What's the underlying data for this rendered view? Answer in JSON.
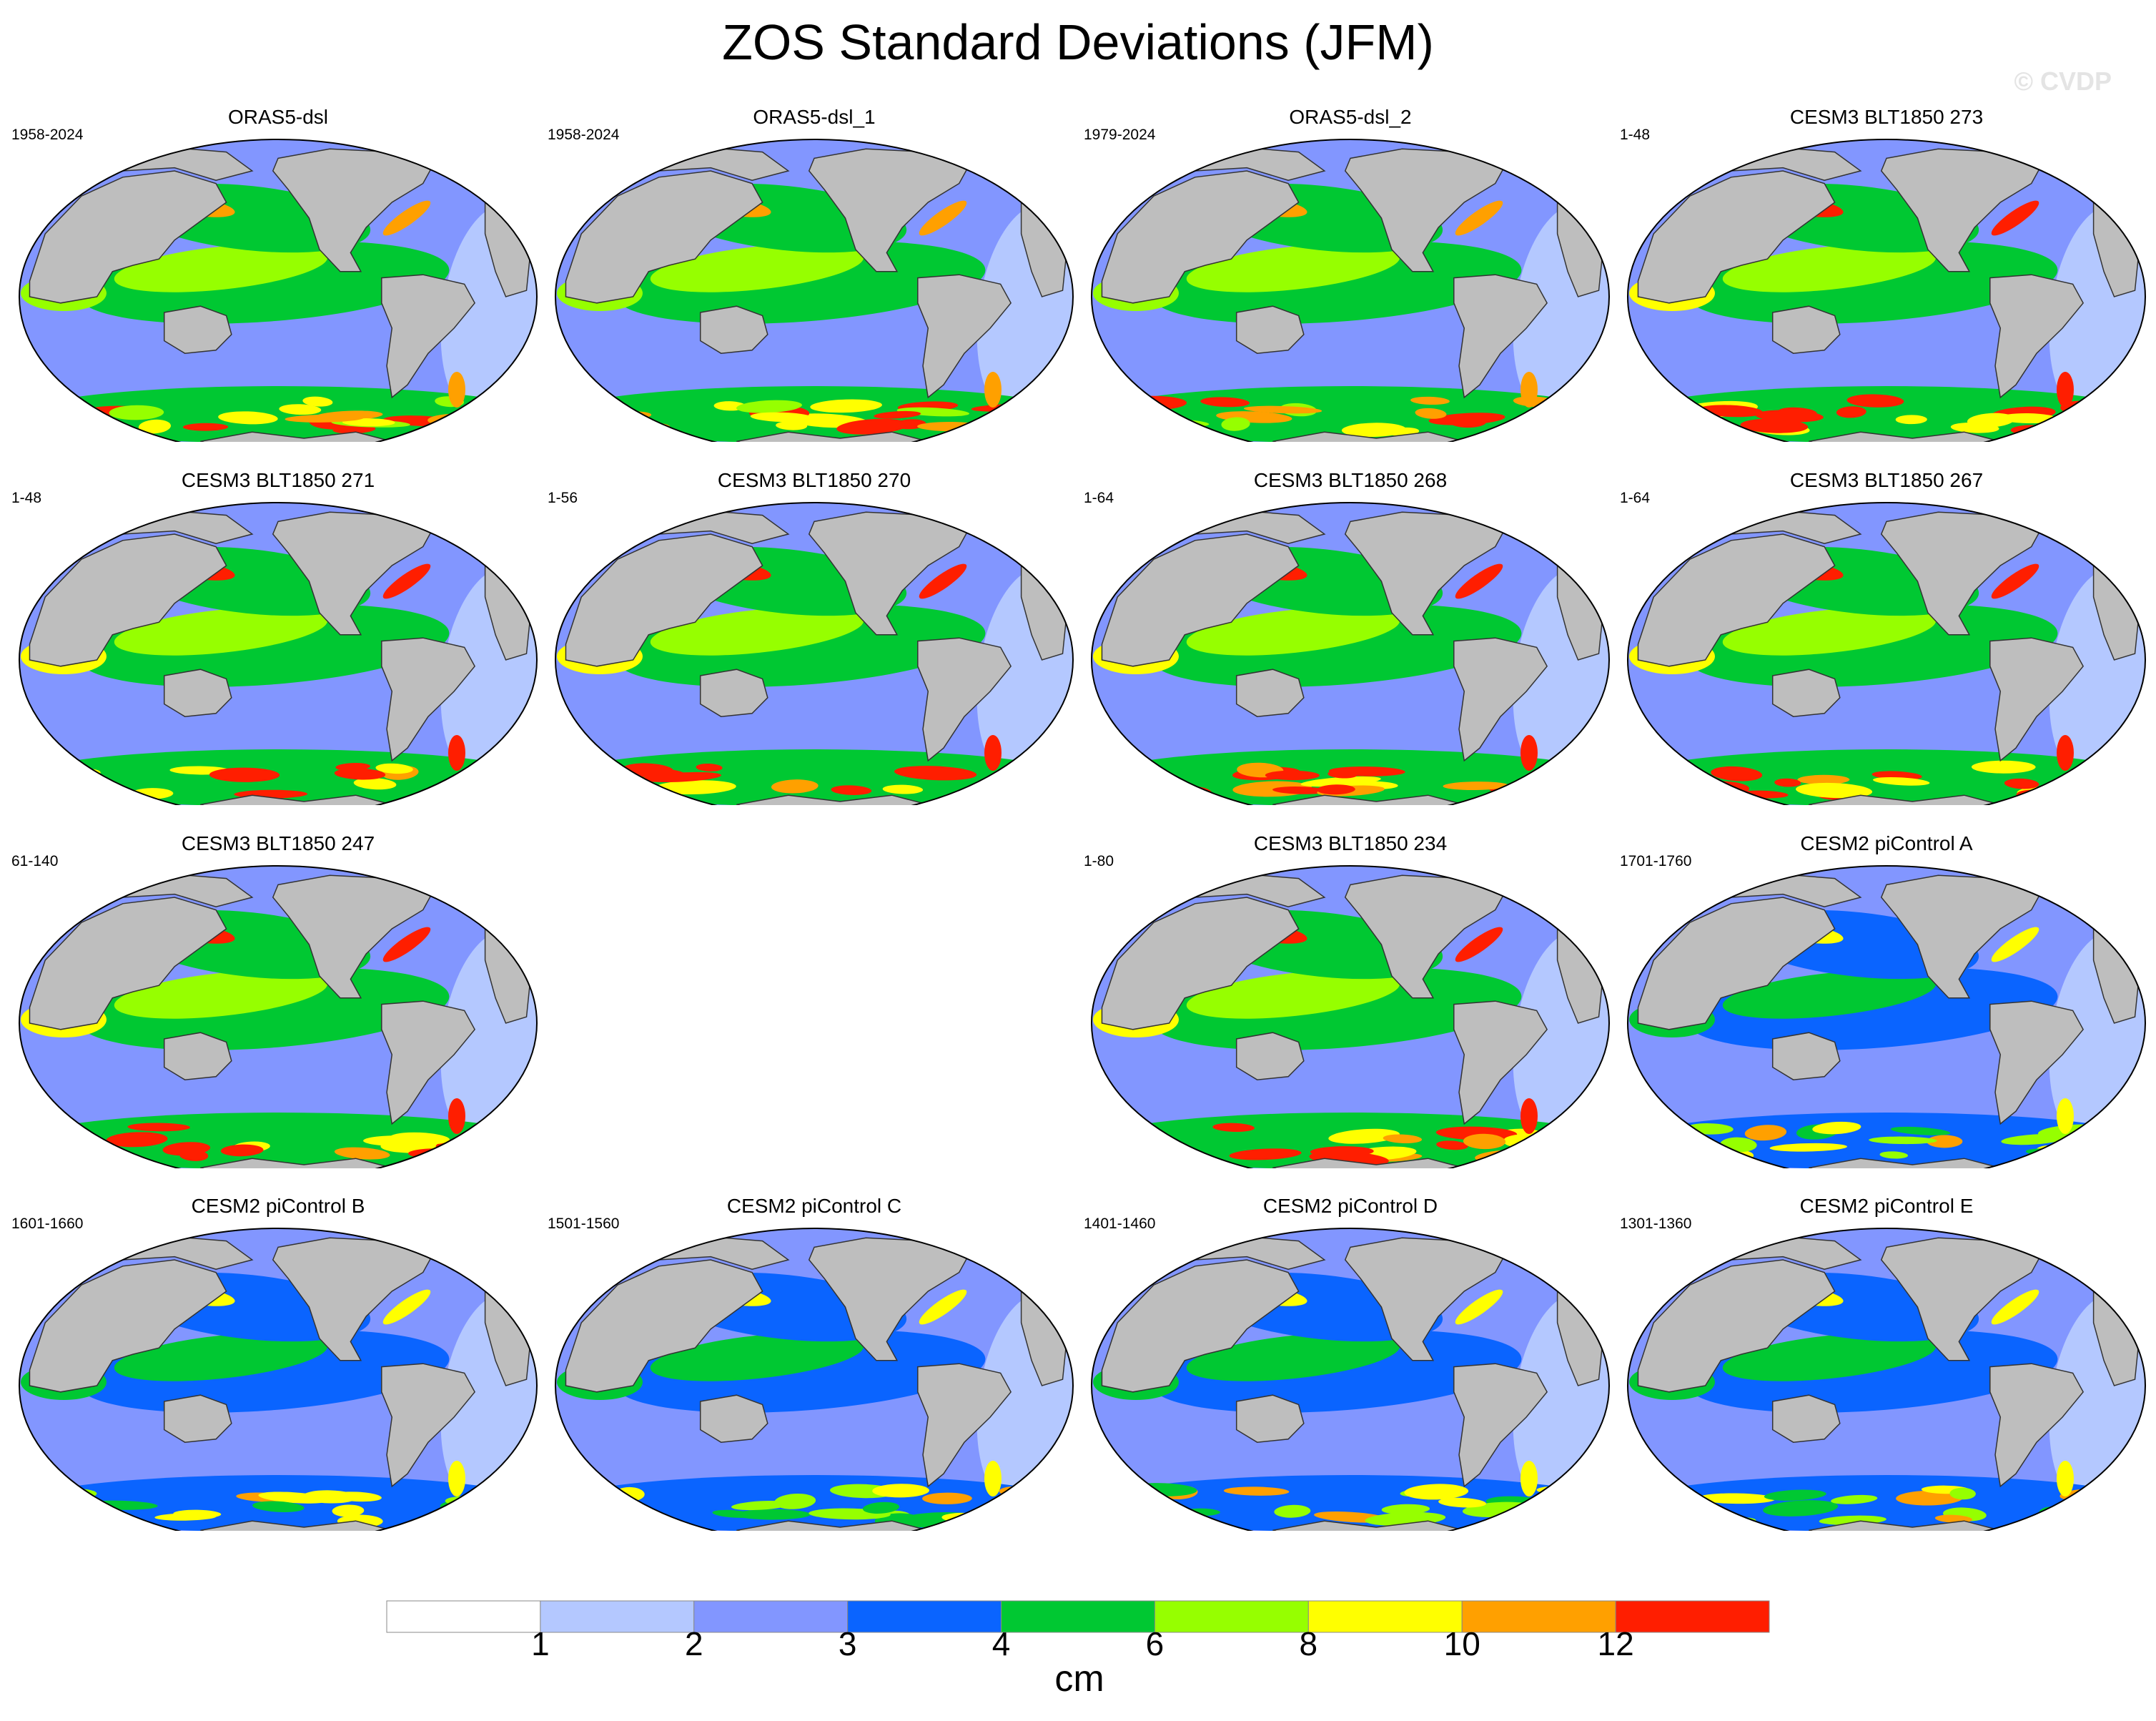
{
  "title": "ZOS Standard Deviations (JFM)",
  "watermark": "© CVDP",
  "land_color": "#bebebe",
  "panels": [
    {
      "title": "ORAS5-dsl",
      "period": "1958-2024",
      "intensity": 4,
      "seed": 11
    },
    {
      "title": "ORAS5-dsl_1",
      "period": "1958-2024",
      "intensity": 4,
      "seed": 12
    },
    {
      "title": "ORAS5-dsl_2",
      "period": "1979-2024",
      "intensity": 4,
      "seed": 13
    },
    {
      "title": "CESM3 BLT1850 273",
      "period": "1-48",
      "intensity": 5,
      "seed": 14
    },
    {
      "title": "CESM3 BLT1850 271",
      "period": "1-48",
      "intensity": 5,
      "seed": 21
    },
    {
      "title": "CESM3 BLT1850 270",
      "period": "1-56",
      "intensity": 5,
      "seed": 22
    },
    {
      "title": "CESM3 BLT1850 268",
      "period": "1-64",
      "intensity": 5,
      "seed": 23
    },
    {
      "title": "CESM3 BLT1850 267",
      "period": "1-64",
      "intensity": 5,
      "seed": 24
    },
    {
      "title": "CESM3 BLT1850 247",
      "period": "61-140",
      "intensity": 5,
      "seed": 31
    },
    null,
    {
      "title": "CESM3 BLT1850 234",
      "period": "1-80",
      "intensity": 5,
      "seed": 33
    },
    {
      "title": "CESM2 piControl A",
      "period": "1701-1760",
      "intensity": 3,
      "seed": 34
    },
    {
      "title": "CESM2 piControl B",
      "period": "1601-1660",
      "intensity": 3,
      "seed": 41
    },
    {
      "title": "CESM2 piControl C",
      "period": "1501-1560",
      "intensity": 3,
      "seed": 42
    },
    {
      "title": "CESM2 piControl D",
      "period": "1401-1460",
      "intensity": 3,
      "seed": 43
    },
    {
      "title": "CESM2 piControl E",
      "period": "1301-1360",
      "intensity": 3,
      "seed": 44
    }
  ],
  "colorbar": {
    "units": "cm",
    "labels": [
      "1",
      "2",
      "3",
      "4",
      "6",
      "8",
      "10",
      "12"
    ],
    "colors": [
      "#ffffff",
      "#b4c8ff",
      "#8296ff",
      "#0a64ff",
      "#00c832",
      "#96ff00",
      "#ffff00",
      "#ffa000",
      "#ff1e00"
    ]
  }
}
